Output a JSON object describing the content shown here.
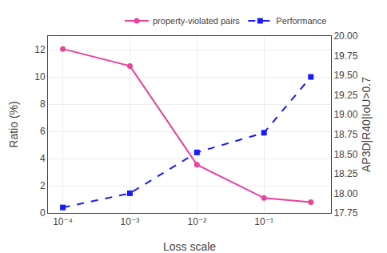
{
  "chart_data": {
    "type": "line",
    "xlabel": "Loss scale",
    "ylabel": "Ratio (%)",
    "y2label": "AP3D|R40|IoU>0.7",
    "x": [
      0.0001,
      0.001,
      0.01,
      0.1,
      0.5
    ],
    "series": [
      {
        "name": "property-violated pairs",
        "color": "#e8439a",
        "marker": "circle",
        "line_style": "solid",
        "values": [
          12.05,
          10.8,
          3.55,
          1.1,
          0.8
        ]
      },
      {
        "name": "Performance",
        "color": "#1a1aff",
        "marker": "square",
        "line_style": "dashed",
        "axis": "y2",
        "values": [
          17.82,
          18.0,
          18.52,
          18.77,
          19.48
        ]
      }
    ],
    "log": "x",
    "xlim": [
      6e-05,
      1.0
    ],
    "xticks": [
      {
        "value": 0.0001,
        "label": "10⁻⁴"
      },
      {
        "value": 0.001,
        "label": "10⁻³"
      },
      {
        "value": 0.01,
        "label": "10⁻²"
      },
      {
        "value": 0.1,
        "label": "10⁻¹"
      }
    ],
    "ylim": [
      0,
      13
    ],
    "yticks": [
      0,
      2,
      4,
      6,
      8,
      10,
      12
    ],
    "y2lim": [
      17.75,
      20.0
    ],
    "y2ticks": [
      17.75,
      {
        "value": 18.0,
        "label": "18.00"
      },
      18.25,
      {
        "value": 18.5,
        "label": "18.50"
      },
      18.75,
      {
        "value": 19.0,
        "label": "19.00"
      },
      19.25,
      {
        "value": 19.5,
        "label": "19.50"
      },
      19.75,
      {
        "value": 20.0,
        "label": "20.00"
      }
    ],
    "grid": true,
    "legend": "upper right"
  }
}
